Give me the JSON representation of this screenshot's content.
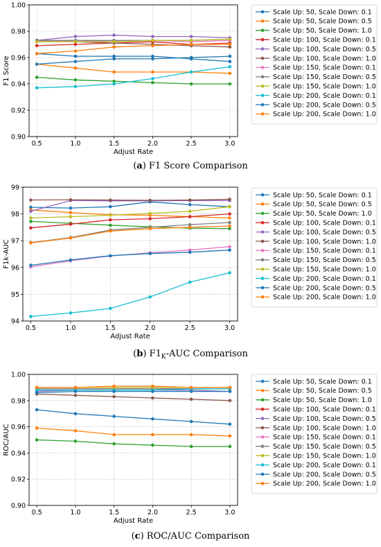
{
  "series_colors": [
    "#1f77b4",
    "#ff7f0e",
    "#2ca02c",
    "#d62728",
    "#9467bd",
    "#8c564b",
    "#e377c2",
    "#7f7f7f",
    "#bcbd22",
    "#17becf",
    "#1f77b4",
    "#ff7f0e"
  ],
  "chart_data": [
    {
      "type": "line",
      "caption_letter": "a",
      "caption_text": " F1 Score Comparison",
      "caption_sub": "",
      "caption_rest": "",
      "xlabel": "Adjust Rate",
      "ylabel": "F1 Score",
      "xlim": [
        0.4,
        3.1
      ],
      "ylim": [
        0.9,
        1.0
      ],
      "grid": true,
      "legend_position": "outside-right",
      "x": [
        0.5,
        1.0,
        1.5,
        2.0,
        2.5,
        3.0
      ],
      "xticks": [
        "0.5",
        "1.0",
        "1.5",
        "2.0",
        "2.5",
        "3.0"
      ],
      "yticks": [
        "0.90",
        "0.92",
        "0.94",
        "0.96",
        "0.98",
        "1.00"
      ],
      "series": [
        {
          "name": "Scale Up: 50, Scale Down: 0.1",
          "values": [
            0.963,
            0.961,
            0.961,
            0.961,
            0.959,
            0.957
          ]
        },
        {
          "name": "Scale Up: 50, Scale Down: 0.5",
          "values": [
            0.955,
            0.952,
            0.949,
            0.949,
            0.949,
            0.948
          ]
        },
        {
          "name": "Scale Up: 50, Scale Down: 1.0",
          "values": [
            0.945,
            0.943,
            0.942,
            0.941,
            0.94,
            0.94
          ]
        },
        {
          "name": "Scale Up: 100, Scale Down: 0.1",
          "values": [
            0.969,
            0.97,
            0.971,
            0.972,
            0.97,
            0.971
          ]
        },
        {
          "name": "Scale Up: 100, Scale Down: 0.5",
          "values": [
            0.973,
            0.976,
            0.977,
            0.976,
            0.976,
            0.975
          ]
        },
        {
          "name": "Scale Up: 100, Scale Down: 1.0",
          "values": [
            0.973,
            0.972,
            0.971,
            0.97,
            0.969,
            0.968
          ]
        },
        {
          "name": "Scale Up: 150, Scale Down: 0.1",
          "values": [
            0.972,
            0.973,
            0.972,
            0.973,
            0.972,
            0.973
          ]
        },
        {
          "name": "Scale Up: 150, Scale Down: 0.5",
          "values": [
            0.973,
            0.973,
            0.973,
            0.973,
            0.973,
            0.974
          ]
        },
        {
          "name": "Scale Up: 150, Scale Down: 1.0",
          "values": [
            0.972,
            0.972,
            0.972,
            0.973,
            0.973,
            0.974
          ]
        },
        {
          "name": "Scale Up: 200, Scale Down: 0.1",
          "values": [
            0.937,
            0.938,
            0.94,
            0.944,
            0.949,
            0.953
          ]
        },
        {
          "name": "Scale Up: 200, Scale Down: 0.5",
          "values": [
            0.955,
            0.957,
            0.959,
            0.959,
            0.96,
            0.961
          ]
        },
        {
          "name": "Scale Up: 200, Scale Down: 1.0",
          "values": [
            0.963,
            0.965,
            0.968,
            0.969,
            0.97,
            0.97
          ]
        }
      ]
    },
    {
      "type": "line",
      "caption_letter": "b",
      "caption_text": " F1",
      "caption_sub": "K",
      "caption_rest": "-AUC Comparison",
      "xlabel": "Adjust Rate",
      "ylabel": "F1k-AUC",
      "xlim": [
        0.4,
        3.1
      ],
      "ylim": [
        94,
        99
      ],
      "grid": true,
      "legend_position": "outside-right",
      "x": [
        0.5,
        1.0,
        1.5,
        2.0,
        2.5,
        3.0
      ],
      "xticks": [
        "0.5",
        "1.0",
        "1.5",
        "2.0",
        "2.5",
        "3.0"
      ],
      "yticks": [
        "94",
        "95",
        "96",
        "97",
        "98",
        "99"
      ],
      "series": [
        {
          "name": "Scale Up: 50, Scale Down: 0.1",
          "values": [
            98.25,
            98.22,
            98.27,
            98.45,
            98.35,
            98.27
          ]
        },
        {
          "name": "Scale Up: 50, Scale Down: 0.5",
          "values": [
            98.15,
            98.05,
            97.97,
            97.95,
            97.9,
            97.85
          ]
        },
        {
          "name": "Scale Up: 50, Scale Down: 1.0",
          "values": [
            97.72,
            97.65,
            97.58,
            97.52,
            97.47,
            97.45
          ]
        },
        {
          "name": "Scale Up: 100, Scale Down: 0.1",
          "values": [
            97.48,
            97.62,
            97.78,
            97.82,
            97.9,
            98.0
          ]
        },
        {
          "name": "Scale Up: 100, Scale Down: 0.5",
          "values": [
            98.1,
            98.5,
            98.49,
            98.49,
            98.5,
            98.5
          ]
        },
        {
          "name": "Scale Up: 100, Scale Down: 1.0",
          "values": [
            98.52,
            98.53,
            98.52,
            98.51,
            98.52,
            98.55
          ]
        },
        {
          "name": "Scale Up: 150, Scale Down: 0.1",
          "values": [
            96.02,
            96.25,
            96.43,
            96.55,
            96.65,
            96.78
          ]
        },
        {
          "name": "Scale Up: 150, Scale Down: 0.5",
          "values": [
            96.93,
            97.12,
            97.4,
            97.5,
            97.6,
            97.68
          ]
        },
        {
          "name": "Scale Up: 150, Scale Down: 1.0",
          "values": [
            97.85,
            97.9,
            97.95,
            98.02,
            98.1,
            98.27
          ]
        },
        {
          "name": "Scale Up: 200, Scale Down: 0.1",
          "values": [
            94.17,
            94.3,
            94.47,
            94.9,
            95.45,
            95.8
          ]
        },
        {
          "name": "Scale Up: 200, Scale Down: 0.5",
          "values": [
            96.08,
            96.28,
            96.44,
            96.52,
            96.57,
            96.65
          ]
        },
        {
          "name": "Scale Up: 200, Scale Down: 1.0",
          "values": [
            96.92,
            97.1,
            97.36,
            97.45,
            97.5,
            97.55
          ]
        }
      ]
    },
    {
      "type": "line",
      "caption_letter": "c",
      "caption_text": " ROC/AUC Comparison",
      "caption_sub": "",
      "caption_rest": "",
      "xlabel": "Adjust Rate",
      "ylabel": "ROC/AUC",
      "xlim": [
        0.4,
        3.1
      ],
      "ylim": [
        0.9,
        1.0
      ],
      "grid": true,
      "legend_position": "outside-right",
      "x": [
        0.5,
        1.0,
        1.5,
        2.0,
        2.5,
        3.0
      ],
      "xticks": [
        "0.5",
        "1.0",
        "1.5",
        "2.0",
        "2.5",
        "3.0"
      ],
      "yticks": [
        "0.90",
        "0.92",
        "0.94",
        "0.96",
        "0.98",
        "1.00"
      ],
      "series": [
        {
          "name": "Scale Up: 50, Scale Down: 0.1",
          "values": [
            0.973,
            0.97,
            0.968,
            0.966,
            0.964,
            0.962
          ]
        },
        {
          "name": "Scale Up: 50, Scale Down: 0.5",
          "values": [
            0.959,
            0.957,
            0.954,
            0.954,
            0.954,
            0.953
          ]
        },
        {
          "name": "Scale Up: 50, Scale Down: 1.0",
          "values": [
            0.95,
            0.949,
            0.947,
            0.946,
            0.945,
            0.945
          ]
        },
        {
          "name": "Scale Up: 100, Scale Down: 0.1",
          "values": [
            0.989,
            0.989,
            0.989,
            0.989,
            0.989,
            0.989
          ]
        },
        {
          "name": "Scale Up: 100, Scale Down: 0.5",
          "values": [
            0.987,
            0.988,
            0.988,
            0.988,
            0.988,
            0.987
          ]
        },
        {
          "name": "Scale Up: 100, Scale Down: 1.0",
          "values": [
            0.985,
            0.984,
            0.983,
            0.982,
            0.981,
            0.98
          ]
        },
        {
          "name": "Scale Up: 150, Scale Down: 0.1",
          "values": [
            0.99,
            0.99,
            0.99,
            0.99,
            0.99,
            0.99
          ]
        },
        {
          "name": "Scale Up: 150, Scale Down: 0.5",
          "values": [
            0.989,
            0.989,
            0.989,
            0.989,
            0.989,
            0.989
          ]
        },
        {
          "name": "Scale Up: 150, Scale Down: 1.0",
          "values": [
            0.99,
            0.99,
            0.99,
            0.99,
            0.99,
            0.99
          ]
        },
        {
          "name": "Scale Up: 200, Scale Down: 0.1",
          "values": [
            0.988,
            0.988,
            0.988,
            0.988,
            0.989,
            0.989
          ]
        },
        {
          "name": "Scale Up: 200, Scale Down: 0.5",
          "values": [
            0.986,
            0.987,
            0.987,
            0.987,
            0.987,
            0.987
          ]
        },
        {
          "name": "Scale Up: 200, Scale Down: 1.0",
          "values": [
            0.99,
            0.99,
            0.991,
            0.991,
            0.99,
            0.99
          ]
        }
      ]
    }
  ]
}
